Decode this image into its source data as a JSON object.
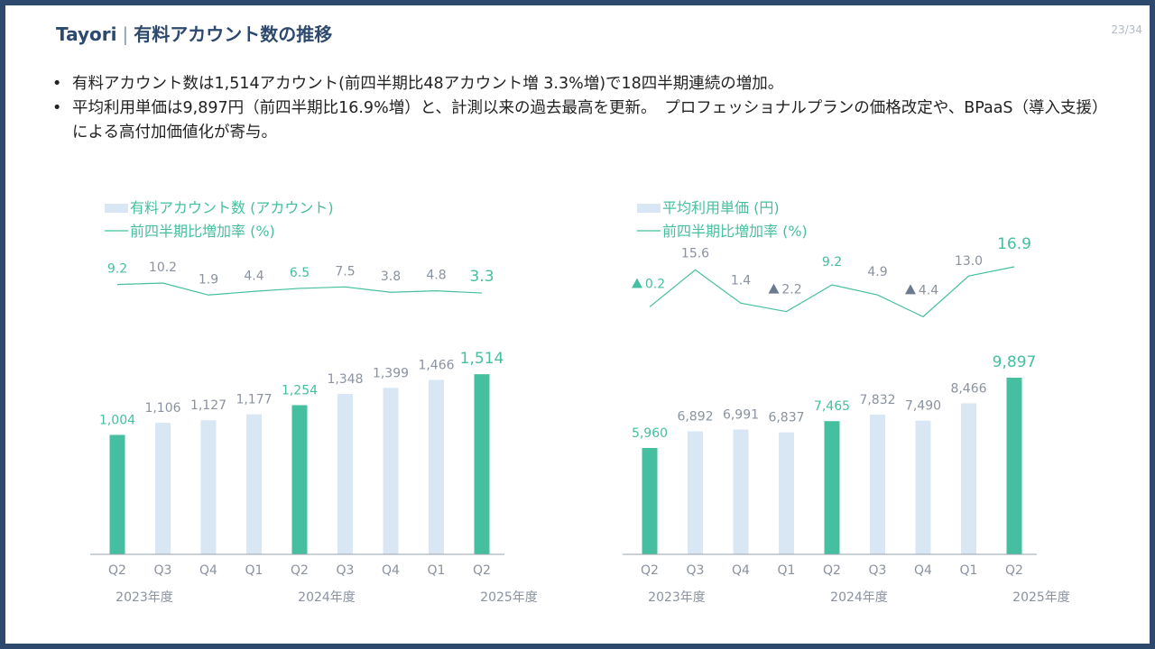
{
  "header": {
    "brand": "Tayori",
    "title": "有料アカウント数の推移",
    "page": "23/34"
  },
  "bullets": [
    "有料アカウント数は1,514アカウント(前四半期比48アカウント増 3.3%増)で18四半期連続の増加。",
    "平均利用単価は9,897円（前四半期比16.9%増）と、計測以来の過去最高を更新。　プロフェッショナルプランの価格改定や、BPaaS（導入支援）による高付加価値化が寄与。"
  ],
  "colors": {
    "accent": "#45bf9f",
    "light_bar": "#d9e6f4",
    "line": "#45bf9f",
    "label_gray": "#8a92a0",
    "triangle": "#6b7a8c",
    "navy": "#2d4a6e"
  },
  "chart_data": [
    {
      "type": "bar",
      "categories": [
        "Q2",
        "Q3",
        "Q4",
        "Q1",
        "Q2",
        "Q3",
        "Q4",
        "Q1",
        "Q2"
      ],
      "year_labels": [
        "2023年度",
        "2024年度",
        "2025年度"
      ],
      "series": [
        {
          "name": "有料アカウント数 (アカウント)",
          "values": [
            1004,
            1106,
            1127,
            1177,
            1254,
            1348,
            1399,
            1466,
            1514
          ],
          "value_labels": [
            "1,004",
            "1,106",
            "1,127",
            "1,177",
            "1,254",
            "1,348",
            "1,399",
            "1,466",
            "1,514"
          ]
        },
        {
          "name": "前四半期比増加率 (%)",
          "values": [
            9.2,
            10.2,
            1.9,
            4.4,
            6.5,
            7.5,
            3.8,
            4.8,
            3.3
          ],
          "value_labels": [
            "9.2",
            "10.2",
            "1.9",
            "4.4",
            "6.5",
            "7.5",
            "3.8",
            "4.8",
            "3.3"
          ],
          "negative": [
            false,
            false,
            false,
            false,
            false,
            false,
            false,
            false,
            false
          ]
        }
      ],
      "highlight": [
        true,
        false,
        false,
        false,
        true,
        false,
        false,
        false,
        true
      ]
    },
    {
      "type": "bar",
      "categories": [
        "Q2",
        "Q3",
        "Q4",
        "Q1",
        "Q2",
        "Q3",
        "Q4",
        "Q1",
        "Q2"
      ],
      "year_labels": [
        "2023年度",
        "2024年度",
        "2025年度"
      ],
      "series": [
        {
          "name": "平均利用単価 (円)",
          "values": [
            5960,
            6892,
            6991,
            6837,
            7465,
            7832,
            7490,
            8466,
            9897
          ],
          "value_labels": [
            "5,960",
            "6,892",
            "6,991",
            "6,837",
            "7,465",
            "7,832",
            "7,490",
            "8,466",
            "9,897"
          ]
        },
        {
          "name": "前四半期比増加率 (%)",
          "values": [
            -0.2,
            15.6,
            1.4,
            -2.2,
            9.2,
            4.9,
            -4.4,
            13.0,
            16.9
          ],
          "value_labels": [
            "0.2",
            "15.6",
            "1.4",
            "2.2",
            "9.2",
            "4.9",
            "4.4",
            "13.0",
            "16.9"
          ],
          "negative": [
            true,
            false,
            false,
            true,
            false,
            false,
            true,
            false,
            false
          ]
        }
      ],
      "highlight": [
        true,
        false,
        false,
        false,
        true,
        false,
        false,
        false,
        true
      ]
    }
  ]
}
